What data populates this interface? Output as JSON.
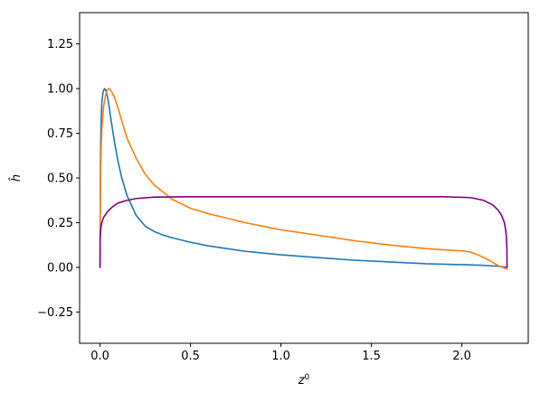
{
  "chart_data": {
    "type": "line",
    "title": "",
    "xlabel": "z",
    "xlabel_sup": "0",
    "ylabel": "ĥ",
    "xlim": [
      -0.113,
      2.367
    ],
    "ylim": [
      -0.425,
      1.425
    ],
    "xticks": [
      0.0,
      0.5,
      1.0,
      1.5,
      2.0
    ],
    "xtick_labels": [
      "0.0",
      "0.5",
      "1.0",
      "1.5",
      "2.0"
    ],
    "yticks": [
      -0.25,
      0.0,
      0.25,
      0.5,
      0.75,
      1.0,
      1.25
    ],
    "ytick_labels": [
      "−0.25",
      "0.00",
      "0.25",
      "0.50",
      "0.75",
      "1.00",
      "1.25"
    ],
    "grid": false,
    "legend": "none",
    "series": [
      {
        "color": "#1f77b4",
        "x": [
          0.0,
          0.002,
          0.005,
          0.01,
          0.015,
          0.02,
          0.025,
          0.03,
          0.035,
          0.04,
          0.05,
          0.06,
          0.08,
          0.1,
          0.12,
          0.15,
          0.2,
          0.25,
          0.3,
          0.35,
          0.4,
          0.5,
          0.6,
          0.7,
          0.8,
          0.9,
          1.0,
          1.2,
          1.4,
          1.6,
          1.8,
          2.0,
          2.1,
          2.2,
          2.25
        ],
        "y": [
          0.0,
          0.55,
          0.78,
          0.92,
          0.97,
          0.99,
          1.0,
          0.995,
          0.98,
          0.96,
          0.9,
          0.83,
          0.7,
          0.59,
          0.5,
          0.4,
          0.29,
          0.23,
          0.2,
          0.18,
          0.165,
          0.14,
          0.12,
          0.105,
          0.09,
          0.08,
          0.07,
          0.055,
          0.04,
          0.03,
          0.02,
          0.015,
          0.012,
          0.006,
          0.0
        ]
      },
      {
        "color": "#ff7f0e",
        "x": [
          0.0,
          0.003,
          0.006,
          0.01,
          0.02,
          0.03,
          0.04,
          0.05,
          0.06,
          0.08,
          0.1,
          0.12,
          0.15,
          0.2,
          0.25,
          0.3,
          0.35,
          0.4,
          0.5,
          0.6,
          0.7,
          0.8,
          0.9,
          1.0,
          1.2,
          1.4,
          1.6,
          1.8,
          1.9,
          2.0,
          2.05,
          2.1,
          2.15,
          2.2,
          2.25
        ],
        "y": [
          0.2,
          0.5,
          0.65,
          0.78,
          0.9,
          0.96,
          0.995,
          1.0,
          0.99,
          0.95,
          0.89,
          0.82,
          0.72,
          0.61,
          0.52,
          0.46,
          0.42,
          0.38,
          0.33,
          0.3,
          0.275,
          0.25,
          0.23,
          0.21,
          0.18,
          0.15,
          0.125,
          0.105,
          0.098,
          0.092,
          0.085,
          0.065,
          0.04,
          0.01,
          -0.01
        ]
      },
      {
        "color": "#800080",
        "x": [
          0.0,
          0.001,
          0.003,
          0.006,
          0.01,
          0.02,
          0.04,
          0.07,
          0.1,
          0.15,
          0.2,
          0.3,
          0.5,
          1.0,
          1.5,
          1.9,
          2.05,
          2.12,
          2.17,
          2.2,
          2.22,
          2.235,
          2.242,
          2.247,
          2.249,
          2.25
        ],
        "y": [
          0.0,
          0.16,
          0.2,
          0.23,
          0.25,
          0.28,
          0.31,
          0.34,
          0.36,
          0.375,
          0.385,
          0.393,
          0.395,
          0.395,
          0.395,
          0.395,
          0.39,
          0.375,
          0.35,
          0.32,
          0.29,
          0.25,
          0.21,
          0.16,
          0.1,
          0.0
        ]
      }
    ]
  }
}
